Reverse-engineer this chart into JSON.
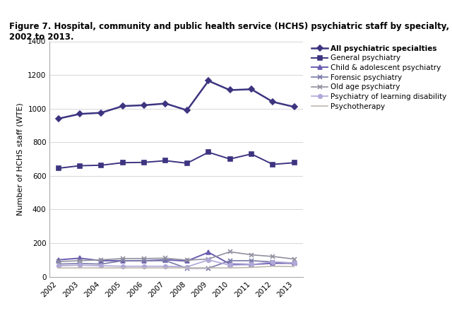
{
  "title": "Figure 7. Hospital, community and public health service (HCHS) psychiatric staff by specialty,\n2002 to 2013.",
  "xlabel": "",
  "ylabel": "Number of HCHS staff (WTE)",
  "years": [
    2002,
    2003,
    2004,
    2005,
    2006,
    2007,
    2008,
    2009,
    2010,
    2011,
    2012,
    2013
  ],
  "series": [
    {
      "label": "All psychiatric specialties",
      "color": "#3d3480",
      "linewidth": 1.8,
      "marker": "D",
      "markersize": 4,
      "linestyle": "-",
      "bold": true,
      "values": [
        940,
        968,
        975,
        1015,
        1020,
        1030,
        990,
        1165,
        1110,
        1115,
        1040,
        1010
      ]
    },
    {
      "label": "General psychiatry",
      "color": "#3d3480",
      "linewidth": 1.4,
      "marker": "s",
      "markersize": 4,
      "linestyle": "-",
      "bold": false,
      "values": [
        645,
        660,
        663,
        678,
        680,
        690,
        675,
        740,
        700,
        730,
        668,
        678
      ]
    },
    {
      "label": "Child & adolescent psychiatry",
      "color": "#6b5bb0",
      "linewidth": 1.4,
      "marker": "^",
      "markersize": 4,
      "linestyle": "-",
      "bold": false,
      "values": [
        100,
        110,
        95,
        95,
        95,
        100,
        93,
        145,
        75,
        72,
        80,
        80
      ]
    },
    {
      "label": "Forensic psychiatry",
      "color": "#7878a8",
      "linewidth": 1.2,
      "marker": "x",
      "markersize": 5,
      "linestyle": "-",
      "bold": false,
      "values": [
        75,
        78,
        75,
        95,
        95,
        95,
        50,
        50,
        95,
        95,
        88,
        78
      ]
    },
    {
      "label": "Old age psychiatry",
      "color": "#9090a0",
      "linewidth": 1.2,
      "marker": "x",
      "markersize": 5,
      "linestyle": "-",
      "bold": false,
      "values": [
        90,
        95,
        100,
        108,
        108,
        110,
        98,
        105,
        148,
        130,
        120,
        105
      ]
    },
    {
      "label": "Psychiatry of learning disability",
      "color": "#b0a8d8",
      "linewidth": 1.2,
      "marker": "o",
      "markersize": 4,
      "linestyle": "-",
      "bold": false,
      "values": [
        65,
        68,
        65,
        62,
        62,
        62,
        58,
        100,
        68,
        72,
        88,
        82
      ]
    },
    {
      "label": "Psychotherapy",
      "color": "#c0b8b0",
      "linewidth": 1.2,
      "marker": null,
      "markersize": 0,
      "linestyle": "-",
      "bold": false,
      "values": [
        52,
        52,
        52,
        52,
        52,
        52,
        52,
        52,
        52,
        55,
        62,
        60
      ]
    }
  ],
  "ylim": [
    0,
    1400
  ],
  "yticks": [
    0,
    200,
    400,
    600,
    800,
    1000,
    1200,
    1400
  ],
  "background_color": "#ffffff",
  "grid_color": "#d0d0d0",
  "title_fontsize": 8.5,
  "axis_fontsize": 8,
  "tick_fontsize": 7.5,
  "legend_fontsize": 7.5
}
